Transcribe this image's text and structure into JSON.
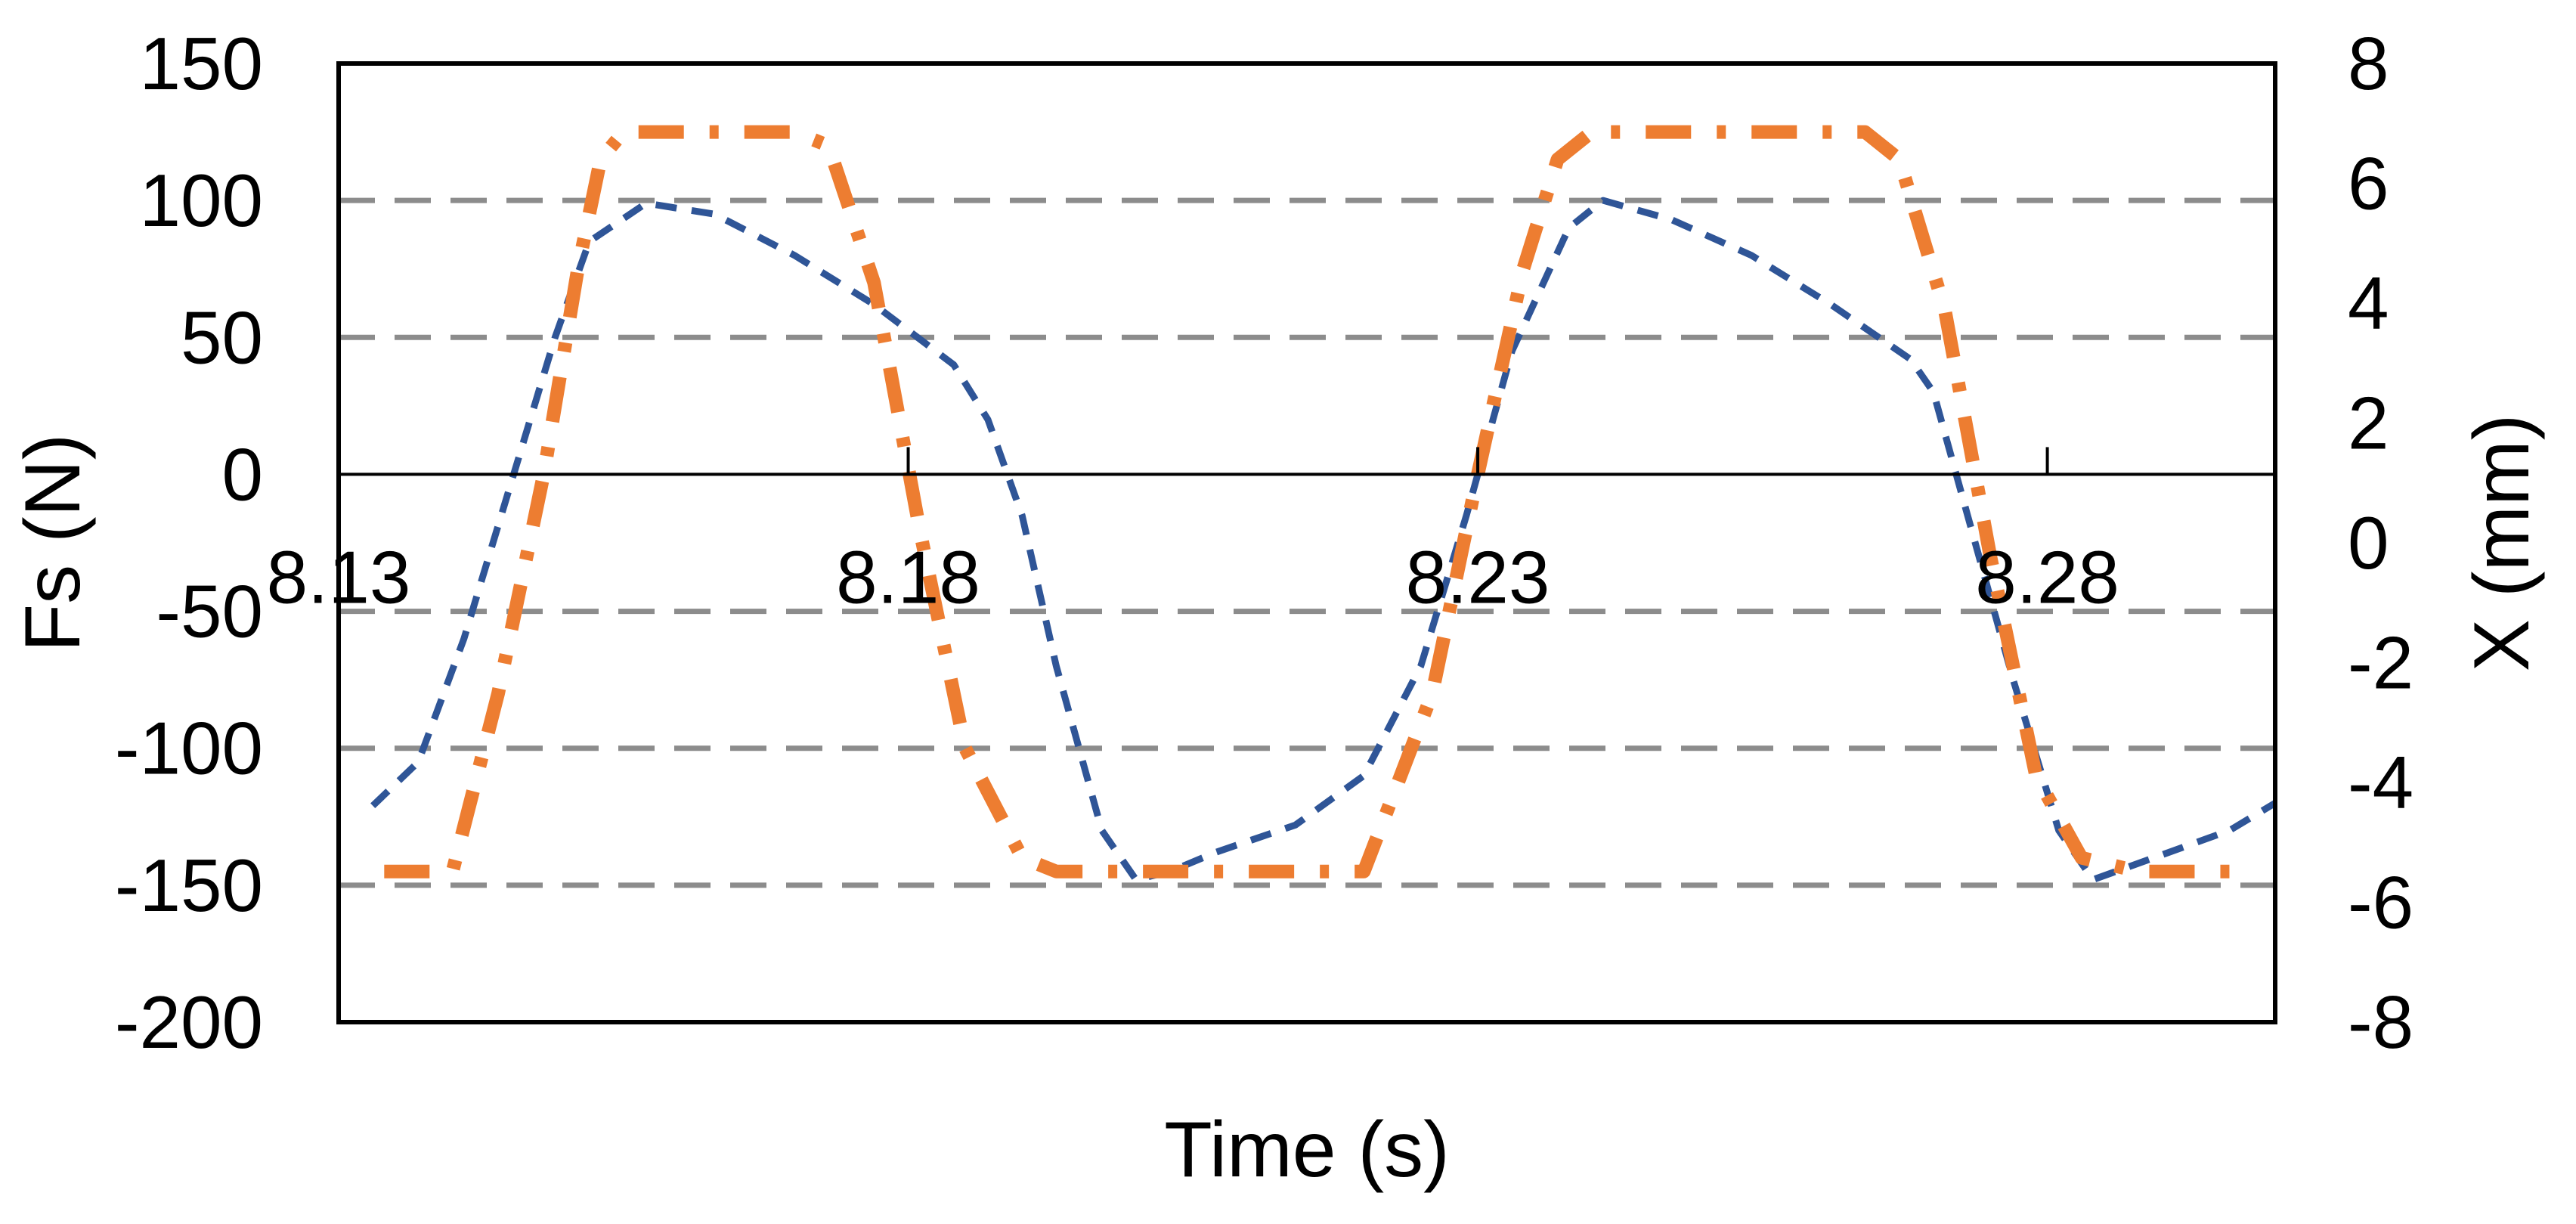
{
  "chart_data": {
    "type": "line",
    "title": "",
    "xlabel": "Time (s)",
    "ylabel_left": "Fs (N)",
    "ylabel_right": "X (mm)",
    "xlim": [
      8.13,
      8.3
    ],
    "ylim_left": [
      -200,
      150
    ],
    "ylim_right": [
      -8,
      8
    ],
    "x_ticks": [
      "8.13",
      "8.18",
      "8.23",
      "8.28"
    ],
    "x_tick_values": [
      8.13,
      8.18,
      8.23,
      8.28
    ],
    "x_tick_labels_at": 0,
    "y_ticks_left": [
      "150",
      "100",
      "50",
      "0",
      "-50",
      "-100",
      "-150",
      "-200"
    ],
    "y_tick_values_left": [
      150,
      100,
      50,
      0,
      -50,
      -100,
      -150,
      -200
    ],
    "y_ticks_right": [
      "8",
      "6",
      "4",
      "2",
      "0",
      "-2",
      "-4",
      "-6",
      "-8"
    ],
    "y_tick_values_right": [
      8,
      6,
      4,
      2,
      0,
      -2,
      -4,
      -6,
      -8
    ],
    "grid": "horizontal dashed",
    "grid_values_left": [
      100,
      50,
      -50,
      -100,
      -150
    ],
    "series": [
      {
        "axis": "left",
        "color": "#2f5597",
        "style": "dashed",
        "x": [
          8.133,
          8.137,
          8.141,
          8.145,
          8.149,
          8.152,
          8.157,
          8.163,
          8.17,
          8.177,
          8.184,
          8.187,
          8.19,
          8.193,
          8.197,
          8.2,
          8.203,
          8.207,
          8.214,
          8.22,
          8.225,
          8.229,
          8.233,
          8.238,
          8.241,
          8.247,
          8.254,
          8.261,
          8.268,
          8.27,
          8.273,
          8.277,
          8.281,
          8.284,
          8.288,
          8.296,
          8.3
        ],
        "y": [
          -121,
          -105,
          -60,
          -5,
          50,
          85,
          99,
          95,
          80,
          62,
          40,
          20,
          -15,
          -70,
          -130,
          -148,
          -145,
          -138,
          -128,
          -110,
          -70,
          -15,
          45,
          90,
          100,
          93,
          80,
          62,
          42,
          30,
          -15,
          -75,
          -130,
          -148,
          -142,
          -130,
          -120
        ]
      },
      {
        "axis": "left",
        "color": "#ed7d31",
        "style": "dash-dot",
        "x": [
          8.134,
          8.14,
          8.144,
          8.148,
          8.151,
          8.153,
          8.155,
          8.157,
          8.17,
          8.173,
          8.177,
          8.181,
          8.185,
          8.19,
          8.193,
          8.198,
          8.207,
          8.22,
          8.226,
          8.23,
          8.234,
          8.237,
          8.24,
          8.243,
          8.264,
          8.267,
          8.271,
          8.275,
          8.279,
          8.283,
          8.288,
          8.298
        ],
        "y": [
          -145,
          -145,
          -80,
          0,
          75,
          115,
          125,
          125,
          125,
          120,
          70,
          -20,
          -100,
          -140,
          -145,
          -145,
          -145,
          -145,
          -80,
          0,
          75,
          115,
          125,
          125,
          125,
          115,
          60,
          -30,
          -110,
          -140,
          -145,
          -145
        ]
      }
    ]
  }
}
